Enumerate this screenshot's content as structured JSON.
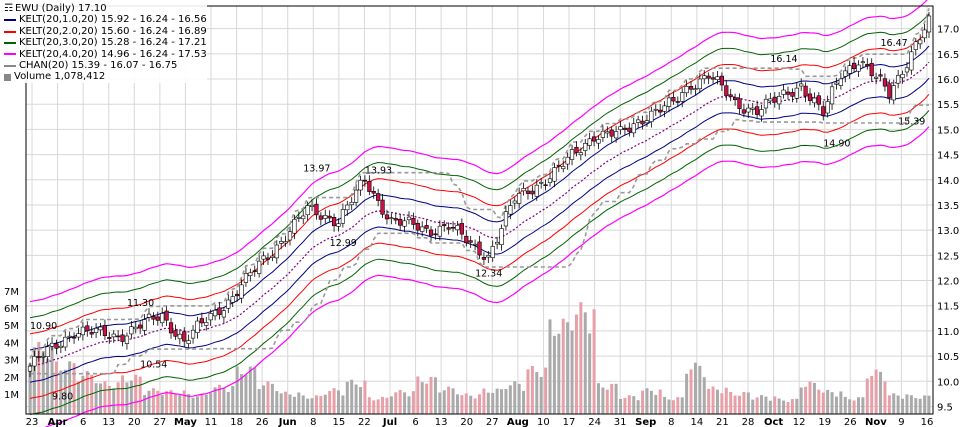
{
  "chart_data": {
    "type": "candlestick",
    "title": "EWU (Daily) 17.10",
    "legend": [
      {
        "label": "KELT(20,1.0,20) 15.92 - 16.24 - 16.56",
        "color": "#000080"
      },
      {
        "label": "KELT(20,2.0,20) 15.60 - 16.24 - 16.89",
        "color": "#ff0000"
      },
      {
        "label": "KELT(20,3.0,20) 15.28 - 16.24 - 17.21",
        "color": "#006400"
      },
      {
        "label": "KELT(20,4.0,20) 14.96 - 16.24 - 17.53",
        "color": "#ff00ff"
      },
      {
        "label": "CHAN(20) 15.39 - 16.07 - 16.75",
        "color": "#888888"
      },
      {
        "label": "Volume 1,078,412",
        "color": "#888888"
      }
    ],
    "price_axis": {
      "ticks": [
        9.5,
        10.0,
        10.5,
        11.0,
        11.5,
        12.0,
        12.5,
        13.0,
        13.5,
        14.0,
        14.5,
        15.0,
        15.5,
        16.0,
        16.5,
        17.0
      ],
      "range": [
        9.35,
        17.45
      ]
    },
    "volume_axis": {
      "ticks": [
        "1M",
        "2M",
        "3M",
        "4M",
        "5M",
        "6M",
        "7M"
      ]
    },
    "x_labels": [
      "23",
      "Apr",
      "6",
      "13",
      "20",
      "27",
      "May",
      "11",
      "18",
      "26",
      "Jun",
      "8",
      "15",
      "22",
      "Jul",
      "6",
      "13",
      "20",
      "27",
      "Aug",
      "10",
      "17",
      "24",
      "31",
      "Sep",
      "8",
      "14",
      "21",
      "28",
      "Oct",
      "12",
      "19",
      "26",
      "Nov",
      "9",
      "16"
    ],
    "annotations": [
      "10.90",
      "9.80",
      "11.30",
      "10.54",
      "13.97",
      "13.93",
      "12.99",
      "12.34",
      "16.14",
      "16.47",
      "14.90",
      "15.39"
    ],
    "close_path": [
      [
        0,
        10.3
      ],
      [
        10,
        11.0
      ],
      [
        20,
        10.9
      ],
      [
        30,
        11.3
      ],
      [
        35,
        10.8
      ],
      [
        45,
        11.6
      ],
      [
        55,
        12.6
      ],
      [
        63,
        13.4
      ],
      [
        70,
        13.2
      ],
      [
        76,
        13.97
      ],
      [
        82,
        13.2
      ],
      [
        90,
        13.0
      ],
      [
        95,
        13.1
      ],
      [
        100,
        12.7
      ],
      [
        104,
        12.5
      ],
      [
        110,
        13.6
      ],
      [
        120,
        14.2
      ],
      [
        128,
        14.9
      ],
      [
        134,
        14.9
      ],
      [
        140,
        15.3
      ],
      [
        146,
        15.5
      ],
      [
        150,
        15.9
      ],
      [
        154,
        16.1
      ],
      [
        160,
        15.5
      ],
      [
        165,
        15.4
      ],
      [
        170,
        15.6
      ],
      [
        175,
        15.9
      ],
      [
        180,
        15.3
      ],
      [
        184,
        16.1
      ],
      [
        188,
        16.4
      ],
      [
        191,
        16.1
      ],
      [
        195,
        15.7
      ],
      [
        201,
        16.7
      ],
      [
        204,
        17.1
      ]
    ],
    "volume_levels": [
      4.2,
      3.1,
      2.5,
      1.9,
      2.3,
      1.5,
      1.4,
      1.2,
      1.7,
      2.8,
      1.9,
      1.3,
      1.1,
      1.5,
      2.0,
      1.0,
      1.4,
      2.2,
      1.6,
      1.2,
      1.5,
      1.9,
      2.8,
      5.6,
      6.5,
      1.8,
      1.1,
      1.5,
      1.0,
      3.0,
      1.6,
      1.3,
      1.1,
      0.9,
      1.9,
      1.4,
      1.0,
      2.6,
      1.2,
      1.1
    ]
  },
  "colors": {
    "up": "#ffffff",
    "down": "#cc1144",
    "volume_up": "#aaaaaa",
    "volume_down": "#e8a0a8",
    "grid": "#d8d8d8"
  }
}
